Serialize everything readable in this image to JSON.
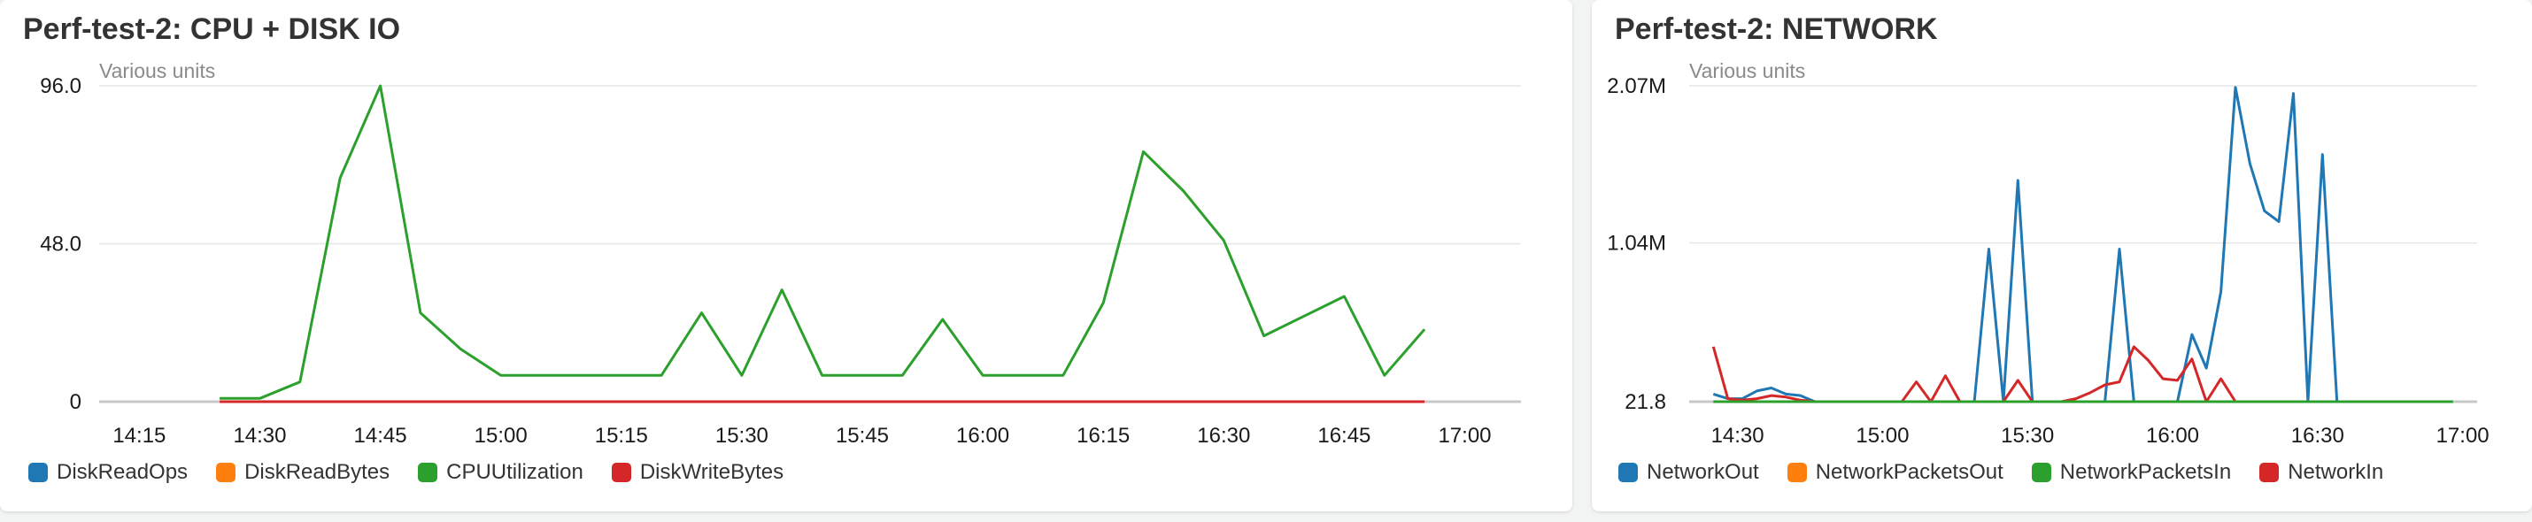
{
  "panels": [
    {
      "title": "Perf-test-2: CPU + DISK IO",
      "units_label": "Various units",
      "legend": [
        {
          "name": "DiskReadOps",
          "color": "#1f77b4"
        },
        {
          "name": "DiskReadBytes",
          "color": "#ff7f0e"
        },
        {
          "name": "CPUUtilization",
          "color": "#2ca02c"
        },
        {
          "name": "DiskWriteBytes",
          "color": "#d62728"
        }
      ]
    },
    {
      "title": "Perf-test-2: NETWORK",
      "units_label": "Various units",
      "legend": [
        {
          "name": "NetworkOut",
          "color": "#1f77b4"
        },
        {
          "name": "NetworkPacketsOut",
          "color": "#ff7f0e"
        },
        {
          "name": "NetworkPacketsIn",
          "color": "#2ca02c"
        },
        {
          "name": "NetworkIn",
          "color": "#d62728"
        }
      ]
    }
  ],
  "chart_data": [
    {
      "type": "line",
      "title": "Perf-test-2: CPU + DISK IO",
      "ylabel": "Various units",
      "x_ticks": [
        "14:15",
        "14:30",
        "14:45",
        "15:00",
        "15:15",
        "15:30",
        "15:45",
        "16:00",
        "16:15",
        "16:30",
        "16:45",
        "17:00"
      ],
      "y_ticks": [
        "0",
        "48.0",
        "96.0"
      ],
      "y_tick_values": [
        0,
        48,
        96
      ],
      "xlim": [
        "14:10",
        "17:07"
      ],
      "ylim": [
        0,
        96
      ],
      "grid": true,
      "legend_position": "bottom-left",
      "series": [
        {
          "name": "CPUUtilization",
          "color": "#2ca02c",
          "x": [
            "14:25",
            "14:30",
            "14:35",
            "14:40",
            "14:45",
            "14:50",
            "14:55",
            "15:00",
            "15:05",
            "15:10",
            "15:15",
            "15:20",
            "15:25",
            "15:30",
            "15:35",
            "15:40",
            "15:45",
            "15:50",
            "15:55",
            "16:00",
            "16:05",
            "16:10",
            "16:15",
            "16:20",
            "16:25",
            "16:30",
            "16:35",
            "16:40",
            "16:45",
            "16:50",
            "16:55"
          ],
          "y": [
            1,
            1,
            6,
            68,
            96,
            27,
            16,
            8,
            8,
            8,
            8,
            8,
            27,
            8,
            34,
            8,
            8,
            8,
            25,
            8,
            8,
            8,
            30,
            76,
            64,
            49,
            20,
            26,
            32,
            8,
            22
          ]
        },
        {
          "name": "DiskWriteBytes",
          "color": "#d62728",
          "x": [
            "14:25",
            "16:55"
          ],
          "y": [
            0,
            0
          ]
        }
      ]
    },
    {
      "type": "line",
      "title": "Perf-test-2: NETWORK",
      "ylabel": "Various units",
      "x_ticks": [
        "14:30",
        "15:00",
        "15:30",
        "16:00",
        "16:30",
        "17:00"
      ],
      "y_ticks": [
        "21.8",
        "1.04M",
        "2.07M"
      ],
      "y_tick_values": [
        21.8,
        1040000,
        2070000
      ],
      "xlim": [
        "14:20",
        "17:03"
      ],
      "ylim": [
        21.8,
        2070000
      ],
      "grid": true,
      "legend_position": "bottom-left",
      "series": [
        {
          "name": "NetworkOut",
          "color": "#1f77b4",
          "x": [
            "14:25",
            "14:28",
            "14:31",
            "14:34",
            "14:37",
            "14:40",
            "14:43",
            "14:46",
            "14:49",
            "14:52",
            "14:55",
            "14:58",
            "15:01",
            "15:04",
            "15:07",
            "15:10",
            "15:13",
            "15:16",
            "15:19",
            "15:22",
            "15:25",
            "15:28",
            "15:31",
            "15:34",
            "15:37",
            "15:40",
            "15:43",
            "15:46",
            "15:49",
            "15:52",
            "15:55",
            "15:58",
            "16:01",
            "16:04",
            "16:07",
            "16:10",
            "16:13",
            "16:16",
            "16:19",
            "16:22",
            "16:25",
            "16:28",
            "16:31",
            "16:34",
            "16:37",
            "16:40",
            "16:43",
            "16:46",
            "16:49",
            "16:52",
            "16:55",
            "16:58"
          ],
          "y": [
            50000,
            20000,
            20000,
            70000,
            90000,
            50000,
            40000,
            0,
            0,
            0,
            0,
            0,
            0,
            0,
            0,
            0,
            0,
            0,
            0,
            1000000,
            0,
            1450000,
            0,
            0,
            0,
            0,
            0,
            0,
            1000000,
            0,
            0,
            0,
            0,
            440000,
            220000,
            720000,
            2060000,
            1560000,
            1250000,
            1180000,
            2020000,
            0,
            1620000,
            0,
            0,
            0,
            0,
            0,
            0,
            0,
            0,
            0
          ],
          "note": ""
        },
        {
          "name": "NetworkIn",
          "color": "#d62728",
          "x": [
            "14:25",
            "14:28",
            "14:31",
            "14:34",
            "14:37",
            "14:40",
            "14:43",
            "14:46",
            "14:49",
            "14:52",
            "14:55",
            "14:58",
            "15:01",
            "15:04",
            "15:07",
            "15:10",
            "15:13",
            "15:16",
            "15:19",
            "15:22",
            "15:25",
            "15:28",
            "15:31",
            "15:34",
            "15:37",
            "15:40",
            "15:43",
            "15:46",
            "15:49",
            "15:52",
            "15:55",
            "15:58",
            "16:01",
            "16:04",
            "16:07",
            "16:10",
            "16:13",
            "16:16",
            "16:19",
            "16:22",
            "16:25",
            "16:28",
            "16:31"
          ],
          "y": [
            360000,
            20000,
            10000,
            20000,
            40000,
            30000,
            10000,
            0,
            0,
            0,
            0,
            0,
            0,
            0,
            130000,
            0,
            170000,
            0,
            0,
            0,
            0,
            140000,
            0,
            0,
            0,
            20000,
            60000,
            110000,
            130000,
            360000,
            270000,
            150000,
            140000,
            280000,
            0,
            150000,
            0,
            0,
            0,
            0,
            0,
            0,
            0
          ]
        },
        {
          "name": "NetworkPacketsIn",
          "color": "#2ca02c",
          "x": [
            "14:25",
            "16:58"
          ],
          "y": [
            21.8,
            21.8
          ]
        }
      ]
    }
  ]
}
